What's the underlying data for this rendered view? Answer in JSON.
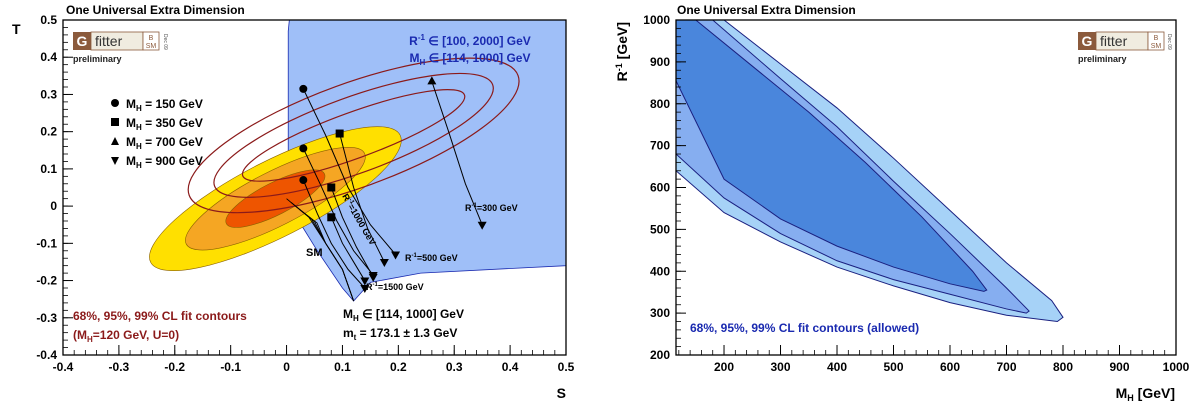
{
  "logo": {
    "g": "G",
    "fitter": "fitter",
    "b": "B",
    "sm": "SM",
    "date": "Dec 09",
    "subtitle": "preliminary"
  },
  "chart_data": [
    {
      "type": "scatter",
      "title": "One Universal Extra Dimension",
      "xlabel": "S",
      "ylabel": "T",
      "xlim": [
        -0.4,
        0.5
      ],
      "ylim": [
        -0.4,
        0.5
      ],
      "xticks": [
        "-0.4",
        "-0.3",
        "-0.2",
        "-0.1",
        "0",
        "0.1",
        "0.2",
        "0.3",
        "0.4",
        "0.5"
      ],
      "yticks": [
        "-0.4",
        "-0.3",
        "-0.2",
        "-0.1",
        "0",
        "0.1",
        "0.2",
        "0.3",
        "0.4",
        "0.5"
      ],
      "fit_contours": {
        "center": [
          -0.02,
          0.02
        ],
        "label_line1": "68%, 95%, 99% CL fit contours",
        "label_line2_pre": "(M",
        "label_line2_sub": "H",
        "label_line2_post": "=120 GeV, U=0)",
        "colors": [
          "#ee5500",
          "#f5a623",
          "#ffe000"
        ]
      },
      "ued_ellipses": {
        "center": [
          0.12,
          0.19
        ],
        "color": "#8b1a1a"
      },
      "allowed_region": {
        "color": "#9fbff8",
        "label1_pre": "R",
        "label1_sup": "-1",
        "label1_post": " ∈ [100, 2000] GeV",
        "label2_pre": "M",
        "label2_sub": "H",
        "label2_post": " ∈ [114, 1000] GeV"
      },
      "legend": [
        {
          "marker": "circle",
          "pre": "M",
          "sub": "H",
          "post": " = 150 GeV"
        },
        {
          "marker": "square",
          "pre": "M",
          "sub": "H",
          "post": " = 350 GeV"
        },
        {
          "marker": "triangle-up",
          "pre": "M",
          "sub": "H",
          "post": " = 700 GeV"
        },
        {
          "marker": "triangle-down",
          "pre": "M",
          "sub": "H",
          "post": " = 900 GeV"
        }
      ],
      "series": [
        {
          "marker": "circle",
          "x": [
            0.03,
            0.07,
            0.11,
            0.15,
            0.195
          ],
          "y": [
            0.315,
            0.19,
            0.05,
            -0.05,
            -0.13
          ]
        },
        {
          "marker": "square",
          "x": [
            0.095,
            0.12,
            0.145,
            0.175
          ],
          "y": [
            0.195,
            0.05,
            -0.06,
            -0.15
          ]
        },
        {
          "marker": "triangle-up",
          "x": [
            0.26,
            0.29,
            0.32,
            0.35
          ],
          "y": [
            0.335,
            0.2,
            0.06,
            -0.05
          ]
        },
        {
          "marker": "circle",
          "x": [
            0.03,
            0.06,
            0.09,
            0.12,
            0.155
          ],
          "y": [
            0.155,
            0.06,
            -0.04,
            -0.12,
            -0.185
          ]
        },
        {
          "marker": "square",
          "x": [
            0.08,
            0.1,
            0.125,
            0.155
          ],
          "y": [
            0.05,
            -0.03,
            -0.11,
            -0.19
          ]
        },
        {
          "marker": "circle",
          "x": [
            0.03,
            0.055,
            0.08,
            0.11,
            0.14
          ],
          "y": [
            0.07,
            -0.02,
            -0.1,
            -0.17,
            -0.22
          ]
        },
        {
          "marker": "square",
          "x": [
            0.08,
            0.1,
            0.12,
            0.14
          ],
          "y": [
            -0.03,
            -0.1,
            -0.15,
            -0.2
          ]
        }
      ],
      "annotations": {
        "r300_pre": "R",
        "r300_sup": "-1",
        "r300_post": "=300 GeV",
        "r500_pre": "R",
        "r500_sup": "-1",
        "r500_post": "=500 GeV",
        "r1000_pre": "R",
        "r1000_sup": "-1",
        "r1000_post": "=1000 GeV",
        "r1500_pre": "R",
        "r1500_sup": "-1",
        "r1500_post": "=1500 GeV",
        "sm": "SM",
        "mh_range_pre": "M",
        "mh_range_sub": "H",
        "mh_range_post": " ∈ [114, 1000] GeV",
        "mt_pre": "m",
        "mt_sub": "t",
        "mt_post": " = 173.1 ± 1.3 GeV"
      }
    },
    {
      "type": "area",
      "title": "One Universal Extra Dimension",
      "xlabel_pre": "M",
      "xlabel_sub": "H",
      "xlabel_post": " [GeV]",
      "ylabel_pre": "R",
      "ylabel_sup": "-1",
      "ylabel_post": " [GeV]",
      "xlim": [
        115,
        1000
      ],
      "ylim": [
        200,
        1000
      ],
      "xticks": [
        "200",
        "300",
        "400",
        "500",
        "600",
        "700",
        "800",
        "900",
        "1000"
      ],
      "yticks": [
        "200",
        "300",
        "400",
        "500",
        "600",
        "700",
        "800",
        "900",
        "1000"
      ],
      "contour_label": "68%, 95%, 99% CL fit contours (allowed)",
      "contours": [
        {
          "level": "99%",
          "color": "#a6d2f7",
          "upper": [
            [
              115,
              1000
            ],
            [
              200,
              1000
            ],
            [
              300,
              895
            ],
            [
              400,
              790
            ],
            [
              500,
              670
            ],
            [
              600,
              545
            ],
            [
              700,
              420
            ],
            [
              780,
              330
            ],
            [
              800,
              290
            ]
          ],
          "lower": [
            [
              115,
              640
            ],
            [
              200,
              540
            ],
            [
              300,
              470
            ],
            [
              400,
              410
            ],
            [
              500,
              365
            ],
            [
              600,
              325
            ],
            [
              700,
              295
            ],
            [
              790,
              280
            ]
          ]
        },
        {
          "level": "95%",
          "color": "#86aef0",
          "upper": [
            [
              115,
              1000
            ],
            [
              180,
              1000
            ],
            [
              300,
              860
            ],
            [
              400,
              745
            ],
            [
              500,
              615
            ],
            [
              600,
              490
            ],
            [
              700,
              360
            ],
            [
              740,
              305
            ]
          ],
          "lower": [
            [
              115,
              680
            ],
            [
              200,
              575
            ],
            [
              300,
              490
            ],
            [
              400,
              425
            ],
            [
              500,
              380
            ],
            [
              600,
              345
            ],
            [
              700,
              310
            ],
            [
              735,
              300
            ]
          ]
        },
        {
          "level": "68%",
          "color": "#4a86dc",
          "upper": [
            [
              115,
              1000
            ],
            [
              150,
              1000
            ],
            [
              250,
              890
            ],
            [
              350,
              780
            ],
            [
              450,
              660
            ],
            [
              550,
              530
            ],
            [
              640,
              400
            ],
            [
              665,
              355
            ]
          ],
          "lower": [
            [
              115,
              855
            ],
            [
              200,
              620
            ],
            [
              300,
              525
            ],
            [
              400,
              460
            ],
            [
              500,
              410
            ],
            [
              600,
              370
            ],
            [
              660,
              352
            ]
          ]
        }
      ]
    }
  ]
}
